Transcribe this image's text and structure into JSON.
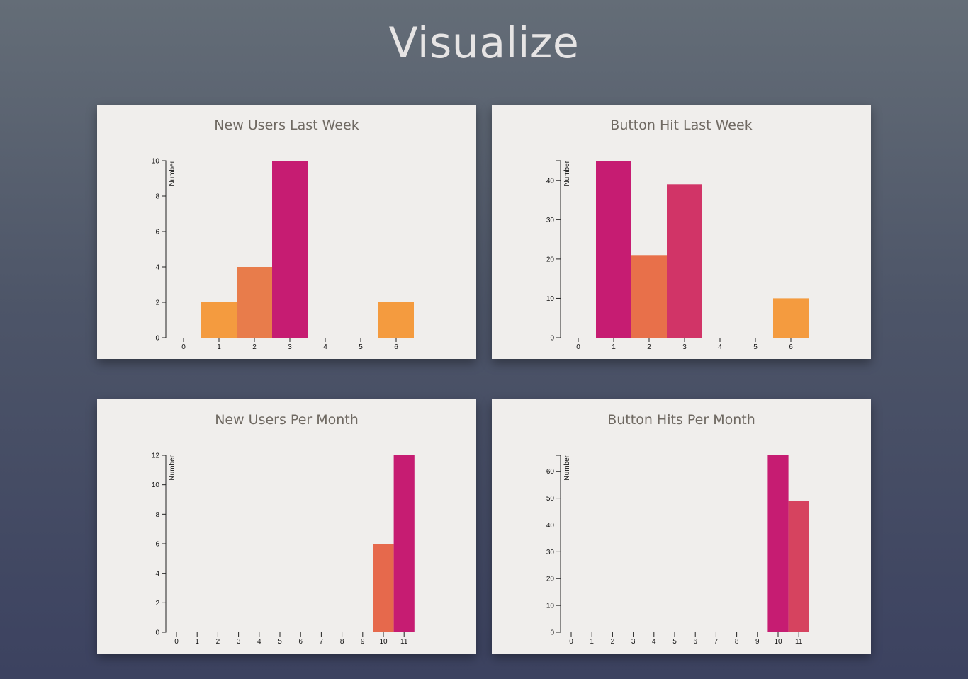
{
  "header": {
    "title": "Visualize"
  },
  "chart_data": [
    {
      "type": "bar",
      "title": "New Users Last Week",
      "ylabel": "Number",
      "xlabel": "",
      "categories": [
        "0",
        "1",
        "2",
        "3",
        "4",
        "5",
        "6"
      ],
      "values": [
        0,
        2,
        4,
        10,
        0,
        0,
        2
      ],
      "colors": [
        "#f49b3f",
        "#f49b3f",
        "#e87c4b",
        "#c61c72",
        "#f49b3f",
        "#f49b3f",
        "#f49b3f"
      ],
      "ylim": [
        0,
        10
      ],
      "yticks": [
        0,
        2,
        4,
        6,
        8,
        10
      ]
    },
    {
      "type": "bar",
      "title": "Button Hit Last Week",
      "ylabel": "Number",
      "xlabel": "",
      "categories": [
        "0",
        "1",
        "2",
        "3",
        "4",
        "5",
        "6"
      ],
      "values": [
        0,
        45,
        21,
        39,
        0,
        0,
        10
      ],
      "colors": [
        "#f49b3f",
        "#c61c72",
        "#e8704a",
        "#d13467",
        "#f49b3f",
        "#f49b3f",
        "#f49b3f"
      ],
      "ylim": [
        0,
        45
      ],
      "yticks": [
        0,
        10,
        20,
        30,
        40
      ]
    },
    {
      "type": "bar",
      "title": "New Users Per Month",
      "ylabel": "Number",
      "xlabel": "",
      "categories": [
        "0",
        "1",
        "2",
        "3",
        "4",
        "5",
        "6",
        "7",
        "8",
        "9",
        "10",
        "11"
      ],
      "values": [
        0,
        0,
        0,
        0,
        0,
        0,
        0,
        0,
        0,
        0,
        6,
        12
      ],
      "colors": [
        "#f49b3f",
        "#f49b3f",
        "#f49b3f",
        "#f49b3f",
        "#f49b3f",
        "#f49b3f",
        "#f49b3f",
        "#f49b3f",
        "#f49b3f",
        "#f49b3f",
        "#e6694c",
        "#c61c72"
      ],
      "ylim": [
        0,
        12
      ],
      "yticks": [
        0,
        2,
        4,
        6,
        8,
        10,
        12
      ]
    },
    {
      "type": "bar",
      "title": "Button Hits Per Month",
      "ylabel": "Number",
      "xlabel": "",
      "categories": [
        "0",
        "1",
        "2",
        "3",
        "4",
        "5",
        "6",
        "7",
        "8",
        "9",
        "10",
        "11"
      ],
      "values": [
        0,
        0,
        0,
        0,
        0,
        0,
        0,
        0,
        0,
        0,
        66,
        49
      ],
      "colors": [
        "#f49b3f",
        "#f49b3f",
        "#f49b3f",
        "#f49b3f",
        "#f49b3f",
        "#f49b3f",
        "#f49b3f",
        "#f49b3f",
        "#f49b3f",
        "#f49b3f",
        "#c61c72",
        "#d6435f"
      ],
      "ylim": [
        0,
        66
      ],
      "yticks": [
        0,
        10,
        20,
        30,
        40,
        50,
        60
      ]
    }
  ]
}
